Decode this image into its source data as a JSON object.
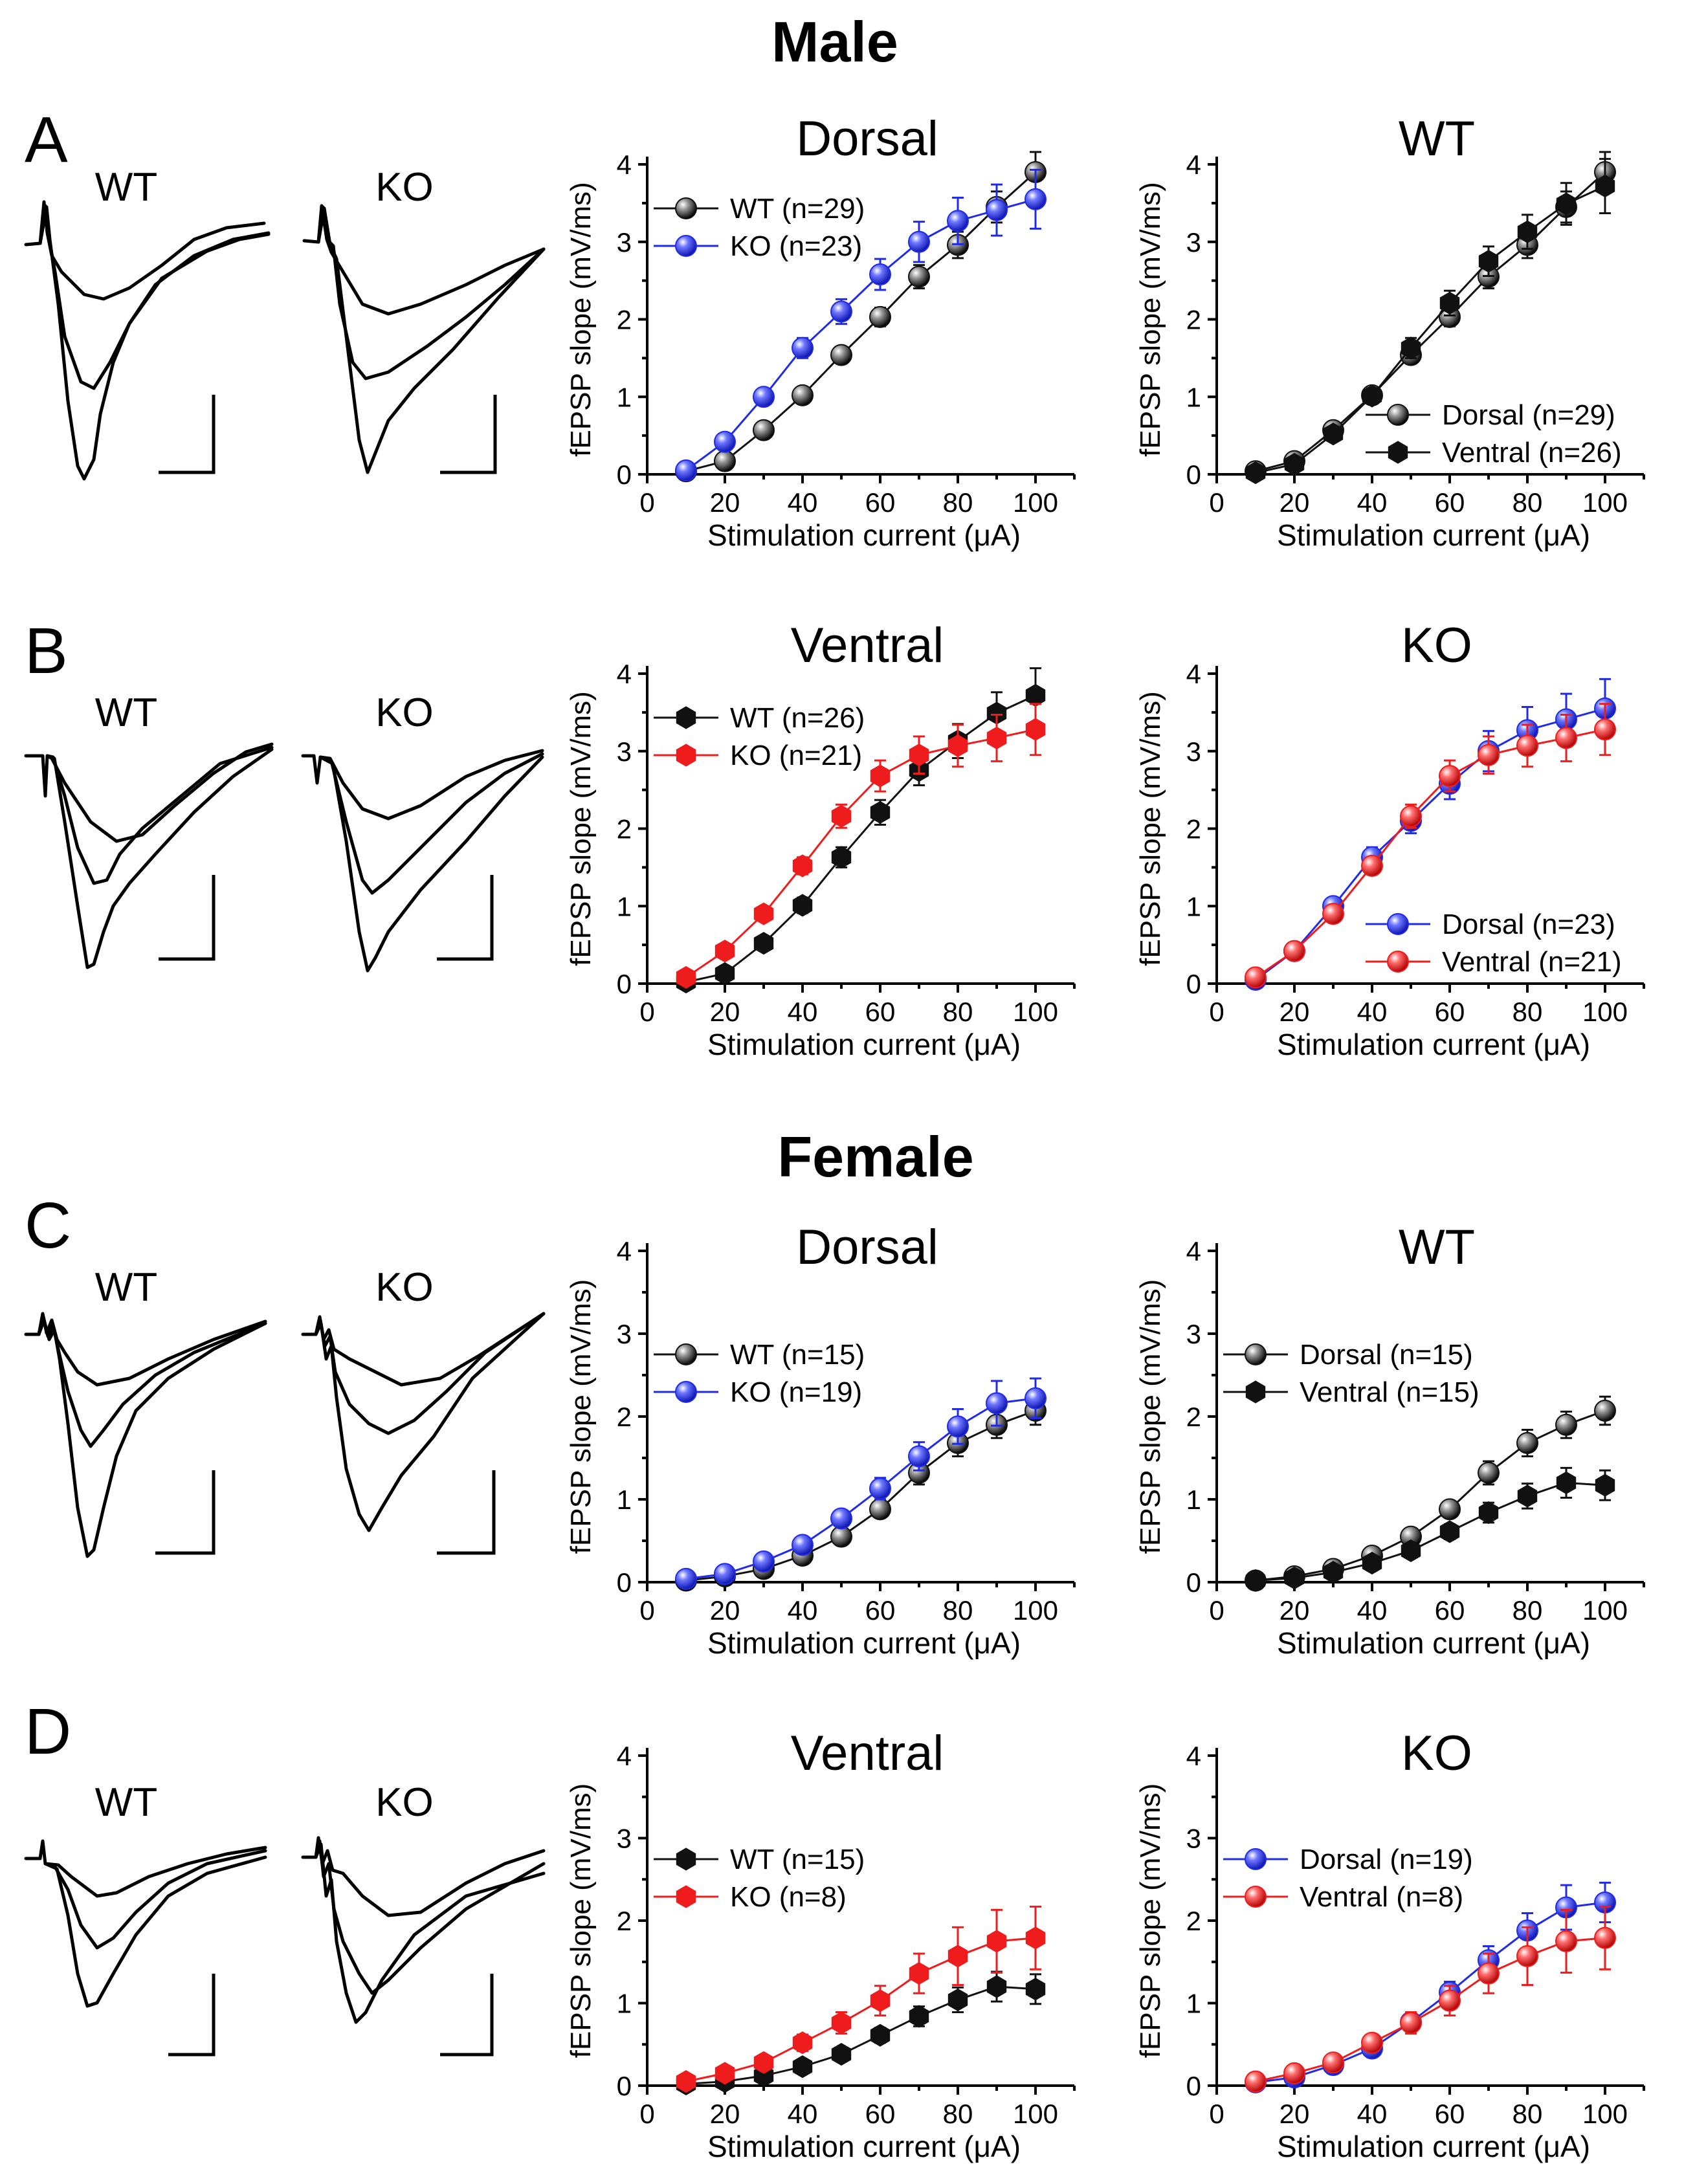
{
  "headers": {
    "male": "Male",
    "female": "Female"
  },
  "panel_letters": [
    "A",
    "B",
    "C",
    "D"
  ],
  "colors": {
    "wt": "#111111",
    "ko_blue": "#1f2be8",
    "ko_red": "#ee1c1c",
    "axis": "#000000"
  },
  "axis_text": {
    "xlabel": "Stimulation current (μA)",
    "ylabel": "fEPSP slope (mV/ms)",
    "xticks": [
      "0",
      "20",
      "40",
      "60",
      "80",
      "100"
    ],
    "yticks": [
      "0",
      "1",
      "2",
      "3",
      "4"
    ]
  },
  "trace_labels": [
    "WT",
    "KO"
  ],
  "chart_data": [
    {
      "id": "A-left",
      "type": "line",
      "title": "Dorsal",
      "xlabel": "Stimulation current (μA)",
      "ylabel": "fEPSP slope (mV/ms)",
      "xlim": [
        0,
        110
      ],
      "ylim": [
        0,
        4.2
      ],
      "x": [
        10,
        20,
        30,
        40,
        50,
        60,
        70,
        80,
        90,
        100
      ],
      "legend_position": "top-left",
      "series": [
        {
          "name": "WT (n=29)",
          "color": "#111111",
          "marker": "sphere",
          "values": [
            0.04,
            0.17,
            0.57,
            1.02,
            1.54,
            2.03,
            2.55,
            2.96,
            3.45,
            3.9
          ],
          "errors": [
            0.02,
            0.04,
            0.07,
            0.08,
            0.1,
            0.12,
            0.15,
            0.17,
            0.2,
            0.26
          ]
        },
        {
          "name": "KO (n=23)",
          "color": "#1f2be8",
          "marker": "sphere",
          "values": [
            0.05,
            0.42,
            1.0,
            1.63,
            2.1,
            2.58,
            3.0,
            3.27,
            3.41,
            3.55
          ],
          "errors": [
            0.02,
            0.06,
            0.09,
            0.13,
            0.16,
            0.2,
            0.26,
            0.3,
            0.33,
            0.38
          ]
        }
      ]
    },
    {
      "id": "A-right",
      "type": "line",
      "title": "WT",
      "xlabel": "Stimulation current (μA)",
      "ylabel": "fEPSP slope (mV/ms)",
      "xlim": [
        0,
        110
      ],
      "ylim": [
        0,
        4.2
      ],
      "x": [
        10,
        20,
        30,
        40,
        50,
        60,
        70,
        80,
        90,
        100
      ],
      "legend_position": "bottom-right",
      "series": [
        {
          "name": "Dorsal (n=29)",
          "color": "#111111",
          "marker": "sphere",
          "values": [
            0.04,
            0.17,
            0.57,
            1.02,
            1.54,
            2.03,
            2.55,
            2.96,
            3.45,
            3.9
          ],
          "errors": [
            0.02,
            0.04,
            0.07,
            0.08,
            0.1,
            0.12,
            0.15,
            0.17,
            0.2,
            0.26
          ]
        },
        {
          "name": "Ventral (n=26)",
          "color": "#111111",
          "marker": "hexagon",
          "values": [
            0.02,
            0.13,
            0.52,
            1.01,
            1.63,
            2.21,
            2.75,
            3.13,
            3.49,
            3.72
          ],
          "errors": [
            0.02,
            0.04,
            0.08,
            0.1,
            0.13,
            0.16,
            0.19,
            0.22,
            0.27,
            0.35
          ]
        }
      ]
    },
    {
      "id": "B-left",
      "type": "line",
      "title": "Ventral",
      "xlabel": "Stimulation current (μA)",
      "ylabel": "fEPSP slope (mV/ms)",
      "xlim": [
        0,
        110
      ],
      "ylim": [
        0,
        4.2
      ],
      "x": [
        10,
        20,
        30,
        40,
        50,
        60,
        70,
        80,
        90,
        100
      ],
      "legend_position": "top-left",
      "series": [
        {
          "name": "WT (n=26)",
          "color": "#111111",
          "marker": "hexagon",
          "values": [
            0.02,
            0.13,
            0.52,
            1.01,
            1.63,
            2.21,
            2.75,
            3.13,
            3.49,
            3.72
          ],
          "errors": [
            0.02,
            0.04,
            0.08,
            0.1,
            0.13,
            0.16,
            0.19,
            0.22,
            0.27,
            0.35
          ]
        },
        {
          "name": "KO (n=21)",
          "color": "#ee1c1c",
          "marker": "hexagon",
          "values": [
            0.08,
            0.42,
            0.9,
            1.52,
            2.16,
            2.68,
            2.95,
            3.07,
            3.17,
            3.28
          ],
          "errors": [
            0.02,
            0.05,
            0.08,
            0.11,
            0.15,
            0.2,
            0.24,
            0.27,
            0.3,
            0.33
          ]
        }
      ]
    },
    {
      "id": "B-right",
      "type": "line",
      "title": "KO",
      "xlabel": "Stimulation current (μA)",
      "ylabel": "fEPSP slope (mV/ms)",
      "xlim": [
        0,
        110
      ],
      "ylim": [
        0,
        4.2
      ],
      "x": [
        10,
        20,
        30,
        40,
        50,
        60,
        70,
        80,
        90,
        100
      ],
      "legend_position": "bottom-right",
      "series": [
        {
          "name": "Dorsal (n=23)",
          "color": "#1f2be8",
          "marker": "sphere",
          "values": [
            0.05,
            0.42,
            1.0,
            1.63,
            2.1,
            2.58,
            3.0,
            3.27,
            3.41,
            3.55
          ],
          "errors": [
            0.02,
            0.06,
            0.09,
            0.13,
            0.16,
            0.2,
            0.26,
            0.3,
            0.33,
            0.38
          ]
        },
        {
          "name": "Ventral (n=21)",
          "color": "#ee1c1c",
          "marker": "sphere",
          "values": [
            0.08,
            0.42,
            0.9,
            1.52,
            2.16,
            2.68,
            2.95,
            3.07,
            3.17,
            3.28
          ],
          "errors": [
            0.02,
            0.05,
            0.08,
            0.11,
            0.15,
            0.2,
            0.24,
            0.27,
            0.3,
            0.33
          ]
        }
      ]
    },
    {
      "id": "C-left",
      "type": "line",
      "title": "Dorsal",
      "xlabel": "Stimulation current (μA)",
      "ylabel": "fEPSP slope (mV/ms)",
      "xlim": [
        0,
        110
      ],
      "ylim": [
        0,
        4.2
      ],
      "x": [
        10,
        20,
        30,
        40,
        50,
        60,
        70,
        80,
        90,
        100
      ],
      "legend_position": "middle-left",
      "series": [
        {
          "name": "WT (n=15)",
          "color": "#111111",
          "marker": "sphere",
          "values": [
            0.02,
            0.07,
            0.16,
            0.32,
            0.55,
            0.88,
            1.32,
            1.68,
            1.9,
            2.07
          ],
          "errors": [
            0.01,
            0.02,
            0.03,
            0.05,
            0.07,
            0.1,
            0.14,
            0.16,
            0.16,
            0.17
          ]
        },
        {
          "name": "KO (n=19)",
          "color": "#1f2be8",
          "marker": "sphere",
          "values": [
            0.04,
            0.1,
            0.25,
            0.45,
            0.77,
            1.13,
            1.52,
            1.88,
            2.16,
            2.22
          ],
          "errors": [
            0.01,
            0.03,
            0.05,
            0.07,
            0.1,
            0.13,
            0.17,
            0.21,
            0.27,
            0.24
          ]
        }
      ]
    },
    {
      "id": "C-right",
      "type": "line",
      "title": "WT",
      "xlabel": "Stimulation current (μA)",
      "ylabel": "fEPSP slope (mV/ms)",
      "xlim": [
        0,
        110
      ],
      "ylim": [
        0,
        4.2
      ],
      "x": [
        10,
        20,
        30,
        40,
        50,
        60,
        70,
        80,
        90,
        100
      ],
      "legend_position": "middle-left",
      "series": [
        {
          "name": "Dorsal (n=15)",
          "color": "#111111",
          "marker": "sphere",
          "values": [
            0.02,
            0.07,
            0.16,
            0.32,
            0.55,
            0.88,
            1.32,
            1.68,
            1.9,
            2.07
          ],
          "errors": [
            0.01,
            0.02,
            0.03,
            0.05,
            0.07,
            0.1,
            0.14,
            0.16,
            0.16,
            0.17
          ]
        },
        {
          "name": "Ventral (n=15)",
          "color": "#111111",
          "marker": "hexagon",
          "values": [
            0.02,
            0.05,
            0.12,
            0.23,
            0.38,
            0.61,
            0.84,
            1.04,
            1.2,
            1.17
          ],
          "errors": [
            0.01,
            0.02,
            0.03,
            0.05,
            0.06,
            0.09,
            0.12,
            0.15,
            0.18,
            0.18
          ]
        }
      ]
    },
    {
      "id": "D-left",
      "type": "line",
      "title": "Ventral",
      "xlabel": "Stimulation current (μA)",
      "ylabel": "fEPSP slope (mV/ms)",
      "xlim": [
        0,
        110
      ],
      "ylim": [
        0,
        4.2
      ],
      "x": [
        10,
        20,
        30,
        40,
        50,
        60,
        70,
        80,
        90,
        100
      ],
      "legend_position": "middle-left",
      "series": [
        {
          "name": "WT (n=15)",
          "color": "#111111",
          "marker": "hexagon",
          "values": [
            0.02,
            0.05,
            0.12,
            0.23,
            0.38,
            0.61,
            0.84,
            1.04,
            1.2,
            1.17
          ],
          "errors": [
            0.01,
            0.02,
            0.03,
            0.05,
            0.06,
            0.09,
            0.12,
            0.15,
            0.18,
            0.18
          ]
        },
        {
          "name": "KO (n=8)",
          "color": "#ee1c1c",
          "marker": "hexagon",
          "values": [
            0.05,
            0.15,
            0.28,
            0.52,
            0.76,
            1.03,
            1.36,
            1.57,
            1.75,
            1.79
          ],
          "errors": [
            0.02,
            0.04,
            0.06,
            0.1,
            0.13,
            0.18,
            0.24,
            0.35,
            0.38,
            0.38
          ]
        }
      ]
    },
    {
      "id": "D-right",
      "type": "line",
      "title": "KO",
      "xlabel": "Stimulation current (μA)",
      "ylabel": "fEPSP slope (mV/ms)",
      "xlim": [
        0,
        110
      ],
      "ylim": [
        0,
        4.2
      ],
      "x": [
        10,
        20,
        30,
        40,
        50,
        60,
        70,
        80,
        90,
        100
      ],
      "legend_position": "middle-left",
      "series": [
        {
          "name": "Dorsal (n=19)",
          "color": "#1f2be8",
          "marker": "sphere",
          "values": [
            0.04,
            0.1,
            0.25,
            0.45,
            0.77,
            1.13,
            1.52,
            1.88,
            2.16,
            2.22
          ],
          "errors": [
            0.01,
            0.03,
            0.05,
            0.07,
            0.1,
            0.13,
            0.17,
            0.21,
            0.27,
            0.24
          ]
        },
        {
          "name": "Ventral (n=8)",
          "color": "#ee1c1c",
          "marker": "sphere",
          "values": [
            0.05,
            0.15,
            0.28,
            0.52,
            0.76,
            1.03,
            1.36,
            1.57,
            1.75,
            1.79
          ],
          "errors": [
            0.02,
            0.04,
            0.06,
            0.1,
            0.13,
            0.18,
            0.24,
            0.35,
            0.38,
            0.38
          ]
        }
      ]
    }
  ]
}
